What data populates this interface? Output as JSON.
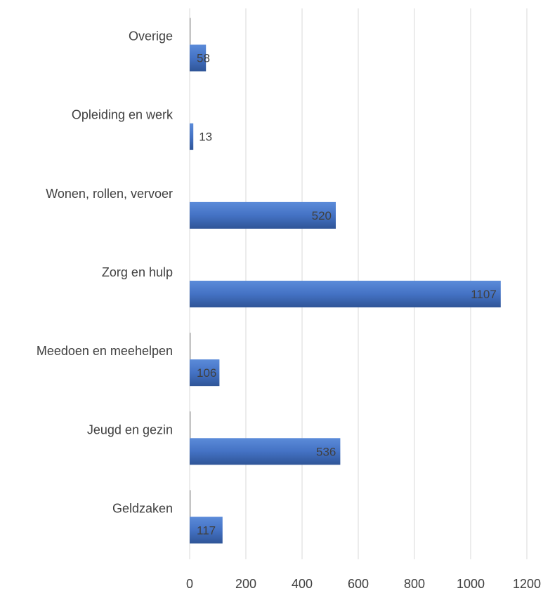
{
  "chart_data": {
    "type": "bar",
    "orientation": "horizontal",
    "categories": [
      "Overige",
      "Opleiding  en werk",
      "Wonen, rollen, vervoer",
      "Zorg en hulp",
      "Meedoen en meehelpen",
      "Jeugd en gezin",
      "Geldzaken"
    ],
    "series": [
      {
        "values": [
          1,
          0,
          0,
          0,
          1,
          1,
          1
        ]
      },
      {
        "values": [
          58,
          13,
          520,
          1107,
          106,
          536,
          117
        ]
      }
    ],
    "data_labels": [
      "58",
      "13",
      "520",
      "1107",
      "106",
      "536",
      "117"
    ],
    "xlim": [
      0,
      1200
    ],
    "xticks": [
      "0",
      "200",
      "400",
      "600",
      "800",
      "1000",
      "1200"
    ],
    "grid": "vertical",
    "colors": {
      "bar": "#4472C4",
      "bar_dark": "#2F5597",
      "gridline": "#D9D9D9",
      "thin_series": "#A5A5A5",
      "text": "#404040"
    },
    "title": "",
    "xlabel": "",
    "ylabel": ""
  }
}
